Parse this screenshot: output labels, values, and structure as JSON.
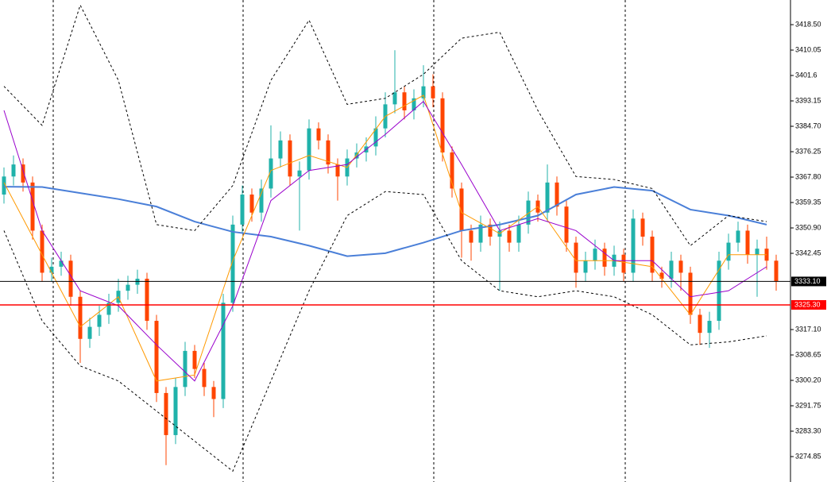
{
  "chart_data": {
    "type": "candlestick",
    "up_color": "#20b2aa",
    "down_color": "#ff4500",
    "ylim": [
      3266.4,
      3426.7
    ],
    "yticks": [
      {
        "value": 3418.5,
        "label": "3418.50"
      },
      3410.05,
      3401.6,
      3393.15,
      {
        "value": 3384.7,
        "label": "3384.70"
      },
      3376.25,
      {
        "value": 3367.8,
        "label": "3367.80"
      },
      3359.35,
      {
        "value": 3350.9,
        "label": "3350.90"
      },
      3342.45,
      {
        "value": 3317.1,
        "label": "3317.10"
      },
      3308.65,
      {
        "value": 3300.2,
        "label": "3300.20"
      },
      3291.75,
      {
        "value": 3283.3,
        "label": "3283.30"
      },
      3274.85
    ],
    "hlines": [
      {
        "value": 3333.1,
        "label": "3333.10",
        "color": "#000000"
      },
      {
        "value": 3325.3,
        "label": "3325.30",
        "color": "#ff0000"
      }
    ],
    "open": [
      3362,
      3368,
      3372,
      3366,
      3350,
      3336,
      3338,
      3340,
      3328,
      3314,
      3318,
      3322,
      3326,
      3330,
      3332,
      3334,
      3320,
      3296,
      3282,
      3298,
      3310,
      3304,
      3298,
      3294,
      3326,
      3352,
      3362,
      3356,
      3364,
      3374,
      3380,
      3368,
      3370,
      3384,
      3380,
      3372,
      3368,
      3374,
      3376,
      3378,
      3384,
      3392,
      3396,
      3390,
      3394,
      3398,
      3394,
      3376,
      3364,
      3350,
      3346,
      3352,
      3348,
      3350,
      3346,
      3352,
      3360,
      3356,
      3366,
      3358,
      3346,
      3336,
      3340,
      3344,
      3338,
      3342,
      3336,
      3354,
      3348,
      3336,
      3334,
      3340,
      3336,
      3322,
      3316,
      3320,
      3340,
      3346,
      3350,
      3342,
      3344,
      3340
    ],
    "high": [
      3371,
      3375,
      3374,
      3368,
      3352,
      3341,
      3343,
      3342,
      3330,
      3321,
      3325,
      3329,
      3334,
      3335,
      3337,
      3336,
      3322,
      3298,
      3301,
      3313,
      3312,
      3306,
      3300,
      3329,
      3355,
      3365,
      3364,
      3367,
      3385,
      3383,
      3382,
      3373,
      3387,
      3386,
      3382,
      3374,
      3377,
      3379,
      3381,
      3388,
      3396,
      3410,
      3398,
      3397,
      3405,
      3402,
      3396,
      3378,
      3366,
      3352,
      3355,
      3354,
      3353,
      3352,
      3355,
      3363,
      3362,
      3372,
      3368,
      3360,
      3348,
      3343,
      3347,
      3346,
      3345,
      3344,
      3357,
      3356,
      3350,
      3338,
      3343,
      3342,
      3338,
      3324,
      3323,
      3343,
      3349,
      3353,
      3352,
      3347,
      3348,
      3342
    ],
    "low": [
      3359,
      3365,
      3363,
      3347,
      3333,
      3333,
      3335,
      3325,
      3306,
      3311,
      3315,
      3319,
      3323,
      3327,
      3329,
      3317,
      3293,
      3272,
      3279,
      3295,
      3301,
      3295,
      3288,
      3291,
      3323,
      3349,
      3353,
      3353,
      3361,
      3371,
      3365,
      3350,
      3367,
      3377,
      3369,
      3360,
      3365,
      3371,
      3373,
      3375,
      3381,
      3389,
      3387,
      3387,
      3391,
      3391,
      3373,
      3361,
      3341,
      3340,
      3343,
      3345,
      3330,
      3343,
      3343,
      3349,
      3353,
      3353,
      3355,
      3343,
      3331,
      3333,
      3337,
      3335,
      3335,
      3333,
      3333,
      3345,
      3333,
      3331,
      3331,
      3330,
      3319,
      3312,
      3311,
      3317,
      3337,
      3343,
      3339,
      3328,
      3337,
      3330
    ],
    "close": [
      3368,
      3372,
      3366,
      3350,
      3336,
      3338,
      3340,
      3328,
      3314,
      3318,
      3322,
      3326,
      3330,
      3332,
      3334,
      3320,
      3296,
      3282,
      3298,
      3310,
      3304,
      3298,
      3294,
      3326,
      3352,
      3362,
      3356,
      3364,
      3374,
      3380,
      3368,
      3370,
      3384,
      3380,
      3372,
      3368,
      3374,
      3376,
      3378,
      3384,
      3392,
      3396,
      3390,
      3394,
      3398,
      3394,
      3376,
      3364,
      3350,
      3346,
      3352,
      3348,
      3350,
      3346,
      3352,
      3360,
      3356,
      3366,
      3358,
      3346,
      3336,
      3340,
      3344,
      3338,
      3342,
      3336,
      3354,
      3348,
      3336,
      3334,
      3340,
      3336,
      3322,
      3316,
      3320,
      3340,
      3346,
      3350,
      3342,
      3344,
      3340,
      3333.1
    ],
    "indicators": {
      "x": [
        0,
        4,
        8,
        12,
        16,
        20,
        24,
        28,
        32,
        36,
        40,
        44,
        48,
        52,
        56,
        60,
        64,
        68,
        72,
        76,
        80
      ],
      "series": [
        {
          "color": "#4a7fd8",
          "dash": false,
          "width": 2,
          "values": [
            3364.6,
            3364.5,
            3362.5,
            3360.5,
            3358,
            3353,
            3349.6,
            3348,
            3345,
            3341.5,
            3342.5,
            3346,
            3350,
            3352,
            3355,
            3362,
            3364.5,
            3363.3,
            3357,
            3355,
            3352
          ]
        },
        {
          "color": "#000000",
          "dash": true,
          "width": 1,
          "values": [
            3398,
            3385,
            3425,
            3400,
            3352,
            3350,
            3365,
            3400,
            3420,
            3392,
            3394,
            3402,
            3414,
            3416,
            3390,
            3368,
            3367,
            3364,
            3345,
            3355,
            3353
          ]
        },
        {
          "color": "#000000",
          "dash": true,
          "width": 1,
          "values": [
            3350,
            3320,
            3305,
            3300,
            3290,
            3280,
            3270,
            3300,
            3330,
            3355,
            3363,
            3362,
            3340,
            3330,
            3328,
            3330,
            3328,
            3322,
            3312,
            3313,
            3315
          ]
        },
        {
          "color": "#ff9900",
          "dash": false,
          "width": 1,
          "values": [
            3366,
            3342,
            3318,
            3328,
            3300,
            3302,
            3340,
            3370,
            3375,
            3371,
            3388,
            3395,
            3356,
            3349,
            3358,
            3340,
            3340,
            3338,
            3322,
            3342,
            3342
          ]
        },
        {
          "color": "#9900cc",
          "dash": false,
          "width": 1,
          "values": [
            3390,
            3350,
            3330,
            3325,
            3312,
            3300,
            3325,
            3360,
            3370,
            3372,
            3382,
            3393,
            3372,
            3350,
            3354,
            3350,
            3340,
            3340,
            3328,
            3330,
            3338
          ]
        }
      ]
    }
  }
}
